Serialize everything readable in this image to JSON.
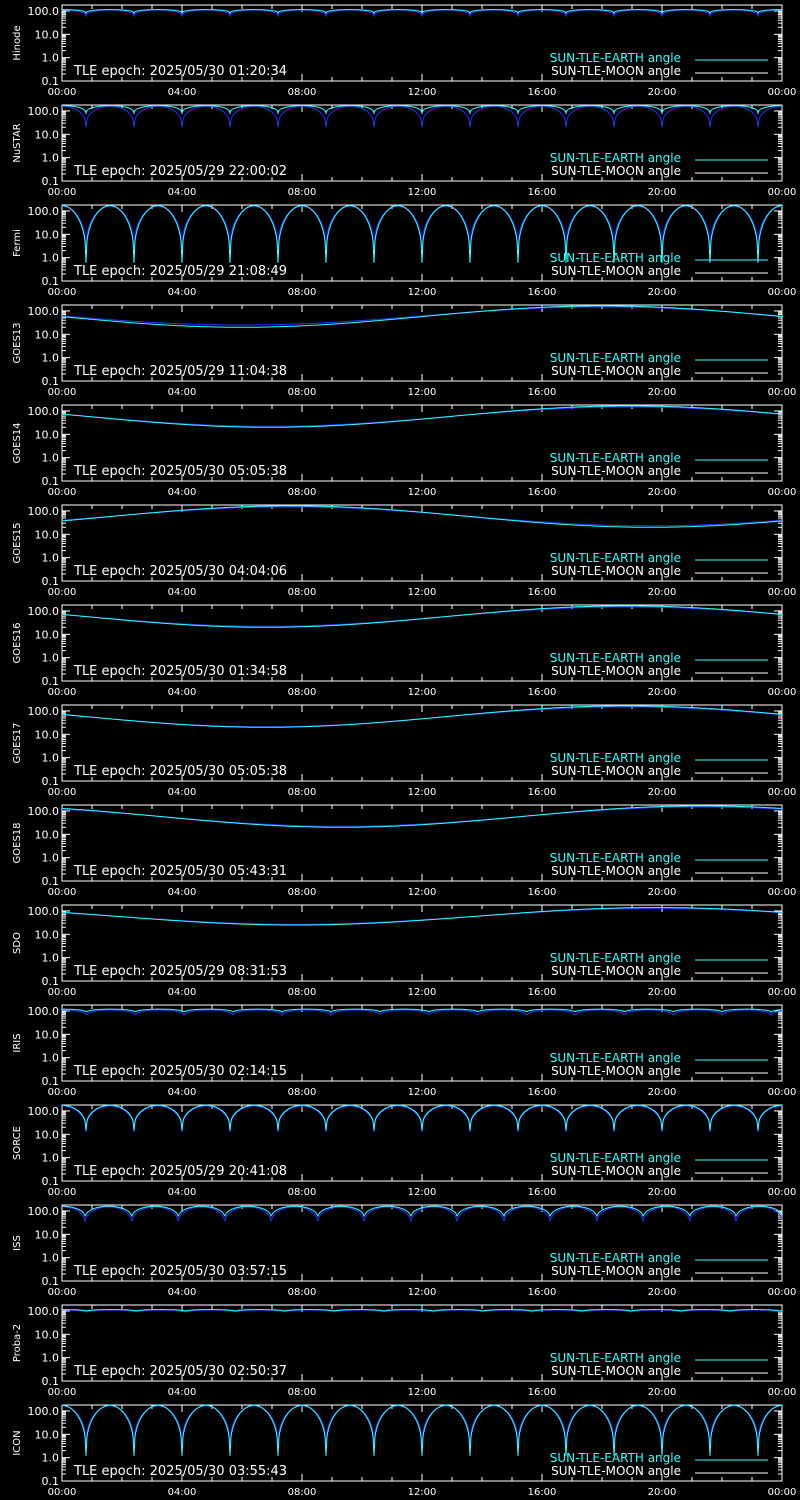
{
  "colors": {
    "background": "#000000",
    "axes": "#ffffff",
    "sun_earth": "#33ffff",
    "sun_moon": "#2233ff",
    "legend_moon_text": "#ffffff"
  },
  "common": {
    "x_ticks": [
      "00:00",
      "04:00",
      "08:00",
      "12:00",
      "16:00",
      "20:00",
      "00:00"
    ],
    "y_ticks": [
      "100.0",
      "10.0",
      "1.0",
      "0.1"
    ],
    "legend": [
      "SUN-TLE-EARTH angle",
      "SUN-TLE-MOON angle"
    ]
  },
  "chart_data": [
    {
      "type": "line",
      "satellite": "Hinode",
      "tle_epoch": "TLE epoch: 2025/05/30 01:20:34",
      "x_range_hours": [
        0,
        24
      ],
      "ylim": [
        0.1,
        180
      ],
      "y_scale": "log",
      "series": [
        {
          "name": "SUN-TLE-EARTH angle",
          "model": "orbit",
          "period_hours": 1.6,
          "min": 80,
          "max": 115
        },
        {
          "name": "SUN-TLE-MOON angle",
          "model": "orbit",
          "period_hours": 1.6,
          "min": 60,
          "max": 110
        }
      ]
    },
    {
      "type": "line",
      "satellite": "NuSTAR",
      "tle_epoch": "TLE epoch: 2025/05/29 22:00:02",
      "x_range_hours": [
        0,
        24
      ],
      "ylim": [
        0.1,
        180
      ],
      "y_scale": "log",
      "series": [
        {
          "name": "SUN-TLE-EARTH angle",
          "model": "orbit",
          "period_hours": 1.6,
          "min": 80,
          "max": 170
        },
        {
          "name": "SUN-TLE-MOON angle",
          "model": "orbit",
          "period_hours": 1.6,
          "min": 20,
          "max": 160
        }
      ]
    },
    {
      "type": "line",
      "satellite": "Fermi",
      "tle_epoch": "TLE epoch: 2025/05/29 21:08:49",
      "x_range_hours": [
        0,
        24
      ],
      "ylim": [
        0.1,
        180
      ],
      "y_scale": "log",
      "series": [
        {
          "name": "SUN-TLE-EARTH angle",
          "model": "orbit",
          "period_hours": 1.6,
          "min": 0.6,
          "max": 170
        },
        {
          "name": "SUN-TLE-MOON angle",
          "model": "orbit",
          "period_hours": 1.6,
          "min": 1.5,
          "max": 160
        }
      ]
    },
    {
      "type": "line",
      "satellite": "GOES13",
      "tle_epoch": "TLE epoch: 2025/05/29 11:04:38",
      "x_range_hours": [
        0,
        24
      ],
      "ylim": [
        0.1,
        180
      ],
      "y_scale": "log",
      "series": [
        {
          "name": "SUN-TLE-EARTH angle",
          "model": "geo",
          "peak_hour": 18,
          "min": 20,
          "max": 165
        },
        {
          "name": "SUN-TLE-MOON angle",
          "model": "geo",
          "peak_hour": 18,
          "min": 25,
          "max": 150
        }
      ]
    },
    {
      "type": "line",
      "satellite": "GOES14",
      "tle_epoch": "TLE epoch: 2025/05/30 05:05:38",
      "x_range_hours": [
        0,
        24
      ],
      "ylim": [
        0.1,
        180
      ],
      "y_scale": "log",
      "series": [
        {
          "name": "SUN-TLE-EARTH angle",
          "model": "geo",
          "peak_hour": 18.9,
          "min": 20,
          "max": 165
        },
        {
          "name": "SUN-TLE-MOON angle",
          "model": "geo",
          "peak_hour": 18.9,
          "min": 22,
          "max": 150
        }
      ]
    },
    {
      "type": "line",
      "satellite": "GOES15",
      "tle_epoch": "TLE epoch: 2025/05/30 04:04:06",
      "x_range_hours": [
        0,
        24
      ],
      "ylim": [
        0.1,
        180
      ],
      "y_scale": "log",
      "series": [
        {
          "name": "SUN-TLE-EARTH angle",
          "model": "geo",
          "peak_hour": 7.6,
          "min": 20,
          "max": 165
        },
        {
          "name": "SUN-TLE-MOON angle",
          "model": "geo",
          "peak_hour": 7.6,
          "min": 23,
          "max": 150
        }
      ]
    },
    {
      "type": "line",
      "satellite": "GOES16",
      "tle_epoch": "TLE epoch: 2025/05/30 01:34:58",
      "x_range_hours": [
        0,
        24
      ],
      "ylim": [
        0.1,
        180
      ],
      "y_scale": "log",
      "series": [
        {
          "name": "SUN-TLE-EARTH angle",
          "model": "geo",
          "peak_hour": 18.8,
          "min": 20,
          "max": 165
        },
        {
          "name": "SUN-TLE-MOON angle",
          "model": "geo",
          "peak_hour": 18.8,
          "min": 22,
          "max": 150
        }
      ]
    },
    {
      "type": "line",
      "satellite": "GOES17",
      "tle_epoch": "TLE epoch: 2025/05/30 05:05:38",
      "x_range_hours": [
        0,
        24
      ],
      "ylim": [
        0.1,
        180
      ],
      "y_scale": "log",
      "series": [
        {
          "name": "SUN-TLE-EARTH angle",
          "model": "geo",
          "peak_hour": 18.8,
          "min": 20,
          "max": 165
        },
        {
          "name": "SUN-TLE-MOON angle",
          "model": "geo",
          "peak_hour": 18.8,
          "min": 21,
          "max": 150
        }
      ]
    },
    {
      "type": "line",
      "satellite": "GOES18",
      "tle_epoch": "TLE epoch: 2025/05/30 05:43:31",
      "x_range_hours": [
        0,
        24
      ],
      "ylim": [
        0.1,
        180
      ],
      "y_scale": "log",
      "series": [
        {
          "name": "SUN-TLE-EARTH angle",
          "model": "geo",
          "peak_hour": 21.3,
          "min": 20,
          "max": 165
        },
        {
          "name": "SUN-TLE-MOON angle",
          "model": "geo",
          "peak_hour": 21.3,
          "min": 22,
          "max": 150
        }
      ]
    },
    {
      "type": "line",
      "satellite": "SDO",
      "tle_epoch": "TLE epoch: 2025/05/29 08:31:53",
      "x_range_hours": [
        0,
        24
      ],
      "ylim": [
        0.1,
        180
      ],
      "y_scale": "log",
      "series": [
        {
          "name": "SUN-TLE-EARTH angle",
          "model": "geo",
          "peak_hour": 19.8,
          "min": 25,
          "max": 140
        },
        {
          "name": "SUN-TLE-MOON angle",
          "model": "geo",
          "peak_hour": 19.8,
          "min": 27,
          "max": 130
        }
      ]
    },
    {
      "type": "line",
      "satellite": "IRIS",
      "tle_epoch": "TLE epoch: 2025/05/30 02:14:15",
      "x_range_hours": [
        0,
        24
      ],
      "ylim": [
        0.1,
        180
      ],
      "y_scale": "log",
      "series": [
        {
          "name": "SUN-TLE-EARTH angle",
          "model": "orbit",
          "period_hours": 1.63,
          "min": 85,
          "max": 120
        },
        {
          "name": "SUN-TLE-MOON angle",
          "model": "orbit",
          "period_hours": 1.63,
          "min": 60,
          "max": 110
        }
      ]
    },
    {
      "type": "line",
      "satellite": "SORCE",
      "tle_epoch": "TLE epoch: 2025/05/29 20:41:08",
      "x_range_hours": [
        0,
        24
      ],
      "ylim": [
        0.1,
        180
      ],
      "y_scale": "log",
      "series": [
        {
          "name": "SUN-TLE-EARTH angle",
          "model": "orbit",
          "period_hours": 1.6,
          "min": 15,
          "max": 175
        },
        {
          "name": "SUN-TLE-MOON angle",
          "model": "orbit",
          "period_hours": 1.6,
          "min": 12,
          "max": 165
        }
      ]
    },
    {
      "type": "line",
      "satellite": "ISS",
      "tle_epoch": "TLE epoch: 2025/05/30 03:57:15",
      "x_range_hours": [
        0,
        24
      ],
      "ylim": [
        0.1,
        180
      ],
      "y_scale": "log",
      "series": [
        {
          "name": "SUN-TLE-EARTH angle",
          "model": "orbit",
          "period_hours": 1.55,
          "min": 45,
          "max": 160
        },
        {
          "name": "SUN-TLE-MOON angle",
          "model": "orbit",
          "period_hours": 1.55,
          "min": 25,
          "max": 150
        }
      ]
    },
    {
      "type": "line",
      "satellite": "Proba-2",
      "tle_epoch": "TLE epoch: 2025/05/30 02:50:37",
      "x_range_hours": [
        0,
        24
      ],
      "ylim": [
        0.1,
        180
      ],
      "y_scale": "log",
      "series": [
        {
          "name": "SUN-TLE-EARTH angle",
          "model": "orbit",
          "period_hours": 1.65,
          "min": 95,
          "max": 115
        },
        {
          "name": "SUN-TLE-MOON angle",
          "model": "orbit",
          "period_hours": 1.65,
          "min": 85,
          "max": 110
        }
      ]
    },
    {
      "type": "line",
      "satellite": "ICON",
      "tle_epoch": "TLE epoch: 2025/05/30 03:55:43",
      "x_range_hours": [
        0,
        24
      ],
      "ylim": [
        0.1,
        180
      ],
      "y_scale": "log",
      "series": [
        {
          "name": "SUN-TLE-EARTH angle",
          "model": "orbit",
          "period_hours": 1.6,
          "min": 1.2,
          "max": 175
        },
        {
          "name": "SUN-TLE-MOON angle",
          "model": "orbit",
          "period_hours": 1.6,
          "min": 2.5,
          "max": 165
        }
      ]
    }
  ]
}
